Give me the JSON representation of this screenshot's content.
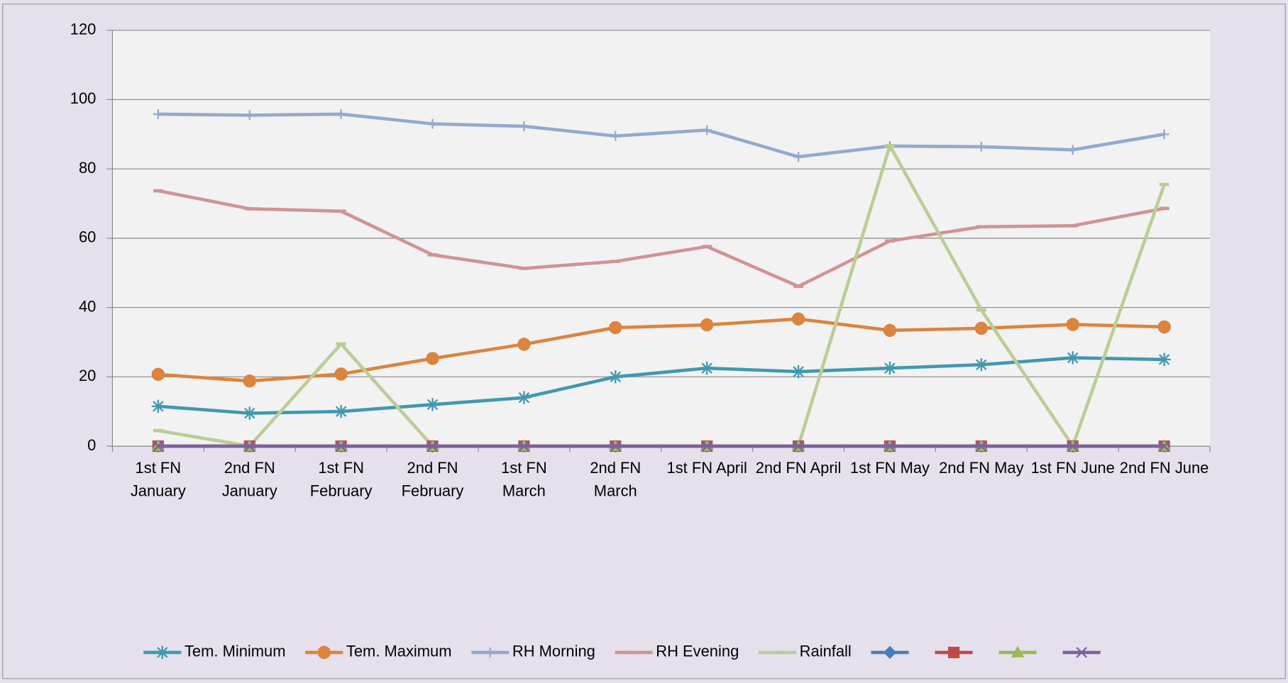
{
  "chart_data": {
    "type": "line",
    "categories": [
      "1st FN January",
      "2nd FN January",
      "1st FN February",
      "2nd FN February",
      "1st FN March",
      "2nd FN March",
      "1st FN April",
      "2nd FN April",
      "1st FN  May",
      "2nd FN May",
      "1st FN June",
      "2nd FN June"
    ],
    "series": [
      {
        "name": "Tem. Minimum",
        "color": "#4198af",
        "marker": "star",
        "values": [
          11.5,
          9.5,
          10,
          12,
          14,
          20,
          22.5,
          21.5,
          22.5,
          23.5,
          25.5,
          25
        ]
      },
      {
        "name": "Tem. Maximum",
        "color": "#db843d",
        "marker": "circle",
        "values": [
          20.7,
          18.8,
          20.8,
          25.3,
          29.4,
          34.2,
          35,
          36.7,
          33.4,
          34,
          35.1,
          34.4
        ]
      },
      {
        "name": "RH Morning",
        "color": "#93a9cf",
        "marker": "plus",
        "values": [
          95.8,
          95.5,
          95.8,
          93,
          92.3,
          89.5,
          91.2,
          83.5,
          86.6,
          86.4,
          85.5,
          90
        ]
      },
      {
        "name": "RH Evening",
        "color": "#d19392",
        "marker": "dash",
        "values": [
          73.7,
          68.5,
          67.8,
          55.2,
          51.3,
          53.3,
          57.6,
          46.1,
          59.2,
          63.3,
          63.6,
          68.6
        ]
      },
      {
        "name": "Rainfall",
        "color": "#b9cd96",
        "marker": "dash",
        "values": [
          4.5,
          0,
          29.5,
          0,
          0,
          0,
          0,
          0,
          86.7,
          39.3,
          0,
          75.5
        ]
      },
      {
        "color": "#4a7ebb",
        "marker": "diamond",
        "values": [
          0,
          0,
          0,
          0,
          0,
          0,
          0,
          0,
          0,
          0,
          0,
          0
        ]
      },
      {
        "color": "#be4b48",
        "marker": "square",
        "values": [
          0,
          0,
          0,
          0,
          0,
          0,
          0,
          0,
          0,
          0,
          0,
          0
        ]
      },
      {
        "color": "#98b954",
        "marker": "triangle",
        "values": [
          0,
          0,
          0,
          0,
          0,
          0,
          0,
          0,
          0,
          0,
          0,
          0
        ]
      },
      {
        "color": "#7d60a0",
        "marker": "x",
        "values": [
          0,
          0,
          0,
          0,
          0,
          0,
          0,
          0,
          0,
          0,
          0,
          0
        ]
      }
    ],
    "ylim": [
      0,
      120
    ],
    "yticks": [
      0,
      20,
      40,
      60,
      80,
      100,
      120
    ],
    "grid": true,
    "legend": "bottom"
  }
}
